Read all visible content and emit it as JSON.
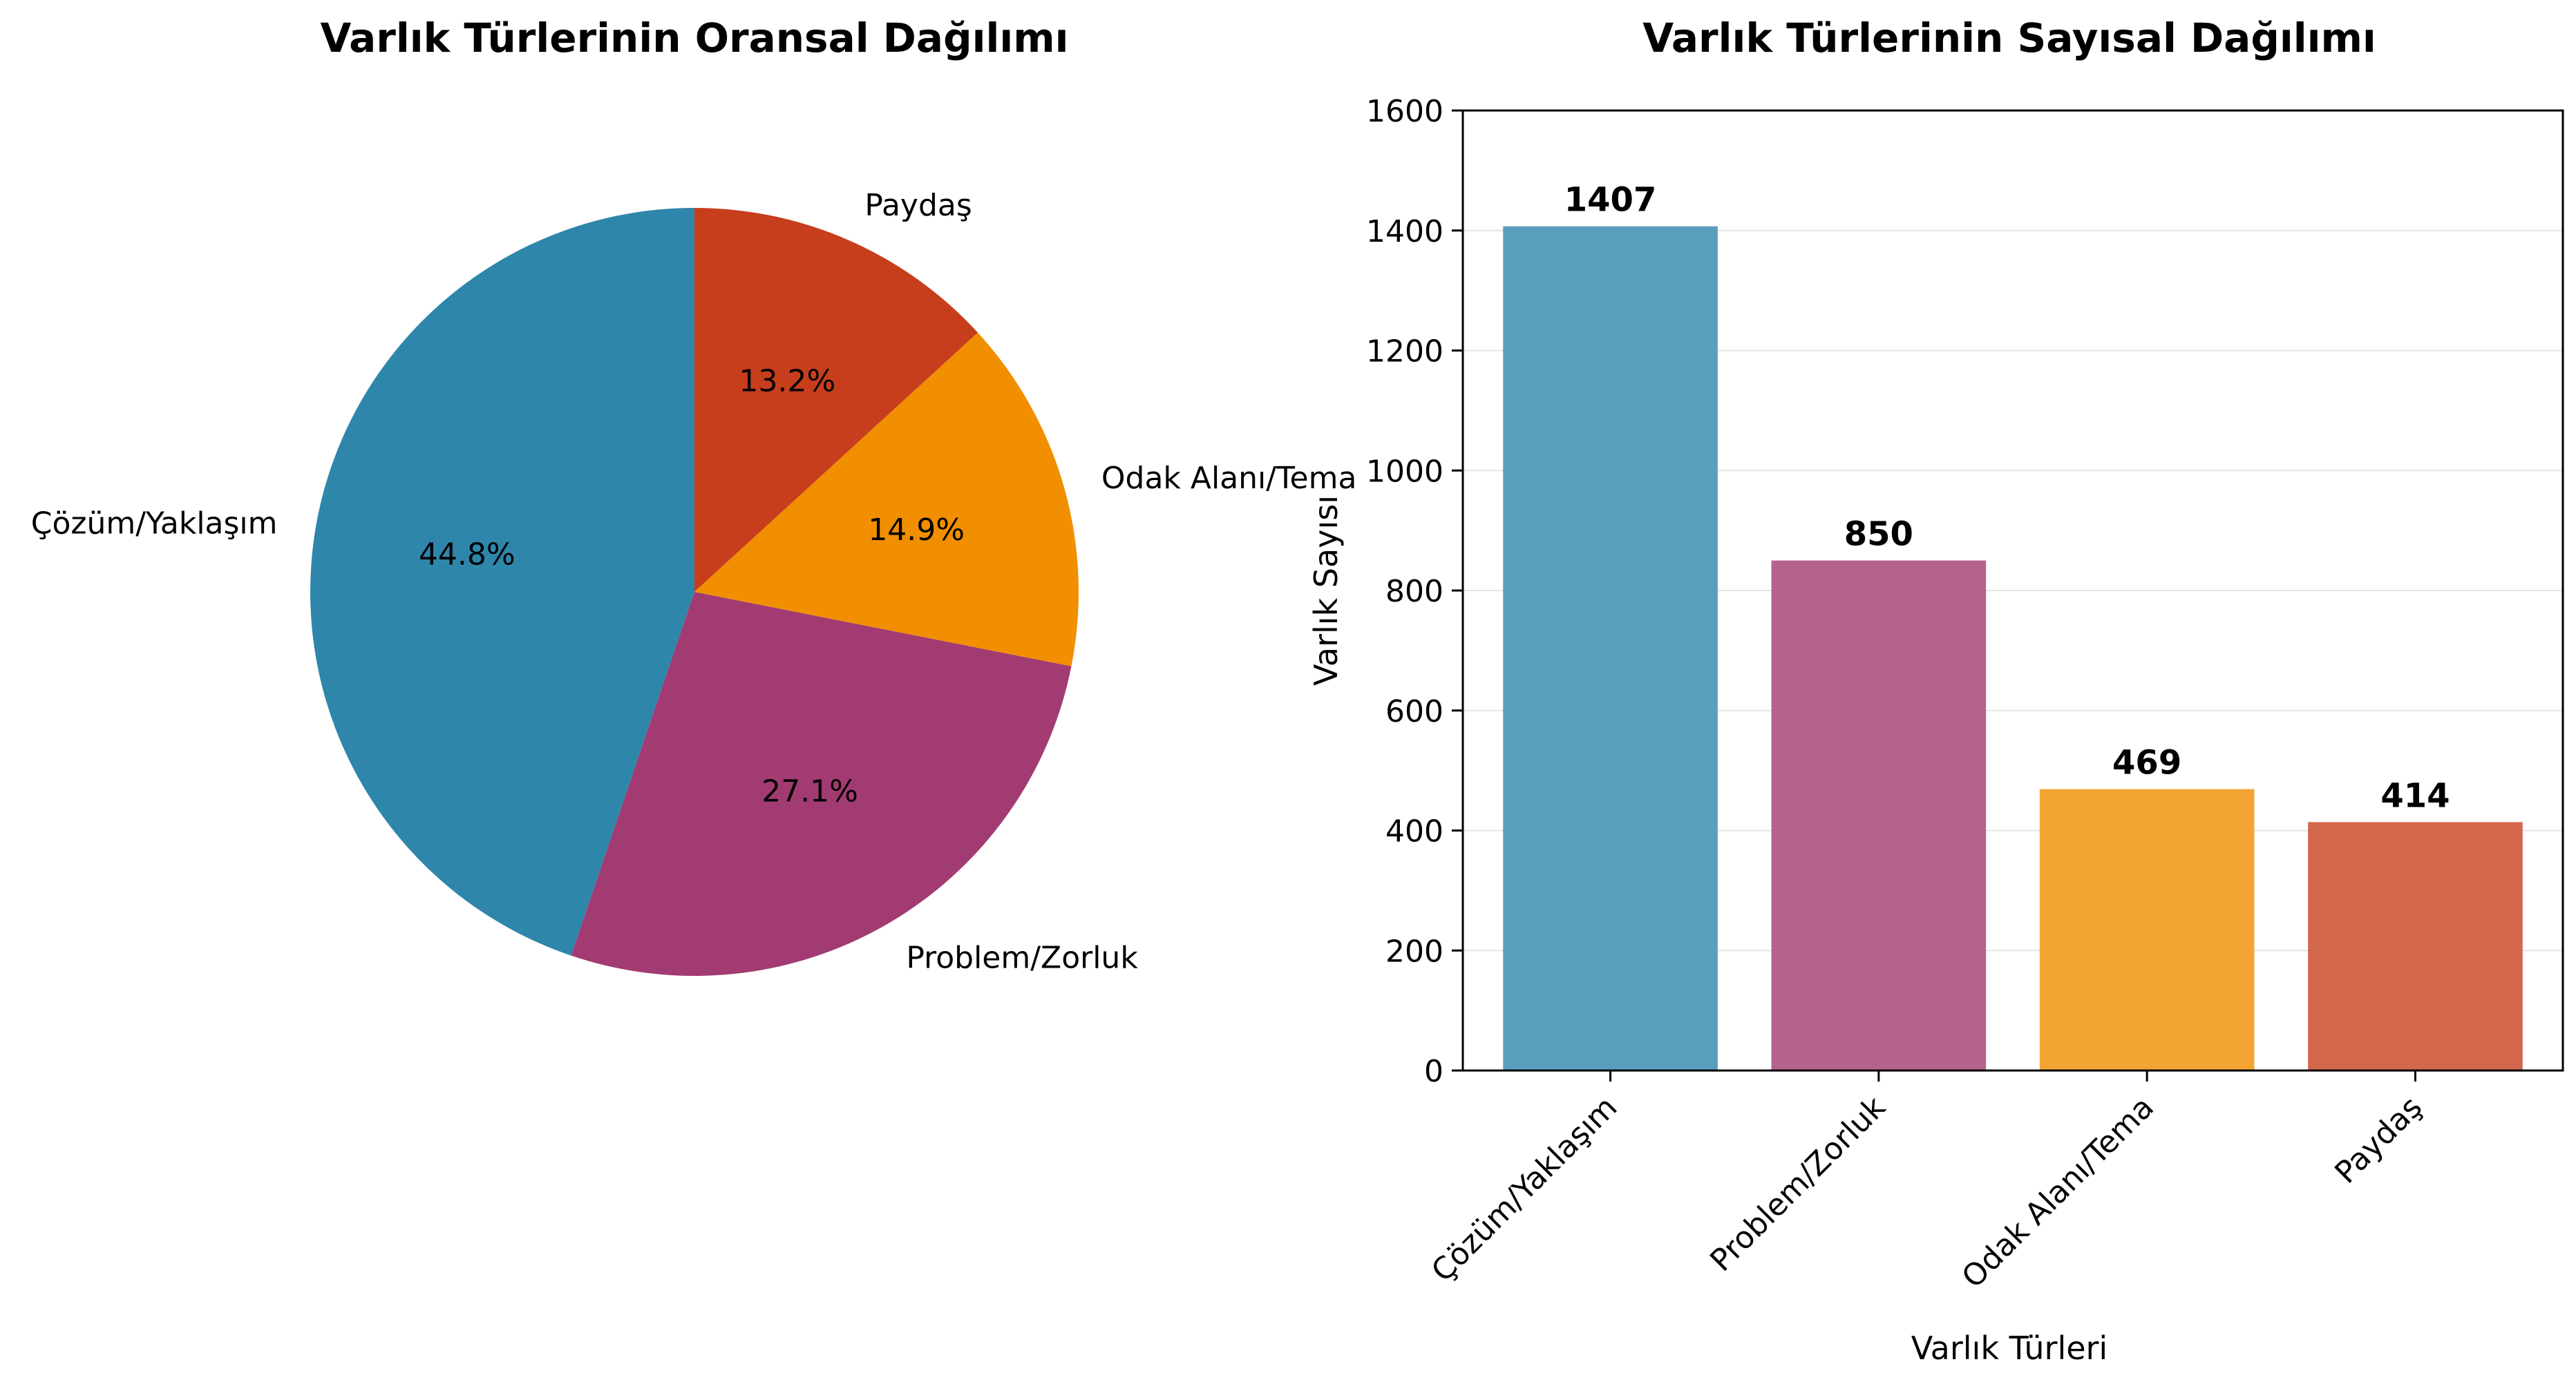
{
  "colors": {
    "pie": [
      "#2E86AB",
      "#A23B72",
      "#F18F01",
      "#C73E1D"
    ],
    "bar": [
      "#599EBC",
      "#B3638D",
      "#F2A533",
      "#D2674C"
    ]
  },
  "chart_data": [
    {
      "type": "pie",
      "title": "Varlık Türlerinin Oransal Dağılımı",
      "labels": [
        "Çözüm/Yaklaşım",
        "Problem/Zorluk",
        "Odak Alanı/Tema",
        "Paydaş"
      ],
      "values": [
        44.8,
        27.1,
        14.9,
        13.2
      ],
      "value_labels": [
        "44.8%",
        "27.1%",
        "14.9%",
        "13.2%"
      ],
      "start_angle": 90,
      "direction": "counterclockwise"
    },
    {
      "type": "bar",
      "title": "Varlık Türlerinin Sayısal Dağılımı",
      "categories": [
        "Çözüm/Yaklaşım",
        "Problem/Zorluk",
        "Odak Alanı/Tema",
        "Paydaş"
      ],
      "values": [
        1407,
        850,
        469,
        414
      ],
      "value_labels": [
        "1407",
        "850",
        "469",
        "414"
      ],
      "xlabel": "Varlık Türleri",
      "ylabel": "Varlık Sayısı",
      "ylim": [
        0,
        1600
      ],
      "yticks": [
        0,
        200,
        400,
        600,
        800,
        1000,
        1200,
        1400,
        1600
      ],
      "grid": "horizontal",
      "legend": "none"
    }
  ]
}
